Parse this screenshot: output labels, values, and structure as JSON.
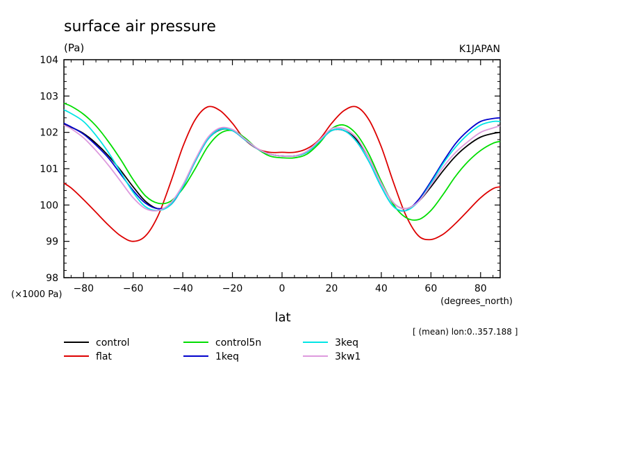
{
  "chart_data": {
    "type": "line",
    "title": "surface air pressure",
    "units_label": "(Pa)",
    "model_label": "K1JAPAN",
    "xlabel": "lat",
    "x_units_label": "(degrees_north)",
    "y_scale_label": "(×1000 Pa)",
    "footnote": "[ (mean) lon:0..357.188 ]",
    "xlim": [
      -87.9,
      87.9
    ],
    "ylim": [
      98,
      104
    ],
    "x_ticks": [
      -80,
      -60,
      -40,
      -20,
      0,
      20,
      40,
      60,
      80
    ],
    "y_ticks": [
      98,
      99,
      100,
      101,
      102,
      103,
      104
    ],
    "x": [
      -87.9,
      -85,
      -80,
      -75,
      -70,
      -65,
      -60,
      -55,
      -50,
      -45,
      -40,
      -35,
      -30,
      -25,
      -20,
      -15,
      -10,
      -5,
      0,
      5,
      10,
      15,
      20,
      25,
      30,
      35,
      40,
      45,
      50,
      55,
      60,
      65,
      70,
      75,
      80,
      85,
      87.9
    ],
    "series": [
      {
        "name": "control",
        "color": "#000000",
        "values": [
          102.22,
          102.14,
          101.97,
          101.7,
          101.36,
          100.95,
          100.5,
          100.1,
          99.9,
          100.0,
          100.5,
          101.2,
          101.8,
          102.07,
          102.05,
          101.8,
          101.55,
          101.4,
          101.35,
          101.35,
          101.45,
          101.75,
          102.05,
          102.05,
          101.8,
          101.3,
          100.6,
          100.05,
          99.9,
          100.1,
          100.5,
          100.95,
          101.35,
          101.65,
          101.87,
          101.97,
          102.0
        ]
      },
      {
        "name": "flat",
        "color": "#dd0000",
        "values": [
          100.6,
          100.47,
          100.15,
          99.8,
          99.45,
          99.15,
          99.0,
          99.15,
          99.7,
          100.6,
          101.6,
          102.35,
          102.7,
          102.6,
          102.25,
          101.8,
          101.55,
          101.45,
          101.45,
          101.45,
          101.55,
          101.8,
          102.25,
          102.6,
          102.7,
          102.35,
          101.6,
          100.6,
          99.7,
          99.15,
          99.05,
          99.2,
          99.5,
          99.85,
          100.2,
          100.45,
          100.5
        ]
      },
      {
        "name": "control5n",
        "color": "#00dd00",
        "values": [
          102.8,
          102.72,
          102.5,
          102.18,
          101.75,
          101.25,
          100.7,
          100.25,
          100.05,
          100.1,
          100.45,
          101.0,
          101.6,
          101.97,
          102.05,
          101.85,
          101.55,
          101.35,
          101.3,
          101.3,
          101.4,
          101.7,
          102.1,
          102.2,
          101.95,
          101.4,
          100.65,
          100.0,
          99.65,
          99.6,
          99.85,
          100.3,
          100.8,
          101.2,
          101.5,
          101.7,
          101.75
        ]
      },
      {
        "name": "1keq",
        "color": "#0000cc",
        "values": [
          102.25,
          102.15,
          101.95,
          101.65,
          101.3,
          100.85,
          100.4,
          100.05,
          99.9,
          100.0,
          100.5,
          101.2,
          101.8,
          102.1,
          102.05,
          101.8,
          101.55,
          101.4,
          101.35,
          101.35,
          101.45,
          101.75,
          102.05,
          102.05,
          101.75,
          101.2,
          100.5,
          99.95,
          99.85,
          100.15,
          100.65,
          101.2,
          101.7,
          102.05,
          102.3,
          102.38,
          102.4
        ]
      },
      {
        "name": "3keq",
        "color": "#00e5e5",
        "values": [
          102.62,
          102.52,
          102.3,
          101.92,
          101.45,
          100.9,
          100.35,
          99.95,
          99.85,
          100.0,
          100.5,
          101.2,
          101.8,
          102.08,
          102.05,
          101.8,
          101.55,
          101.4,
          101.35,
          101.35,
          101.45,
          101.75,
          102.05,
          102.05,
          101.75,
          101.2,
          100.5,
          99.95,
          99.85,
          100.1,
          100.6,
          101.15,
          101.6,
          101.95,
          102.2,
          102.3,
          102.3
        ]
      },
      {
        "name": "3kw1",
        "color": "#dd99dd",
        "values": [
          102.2,
          102.1,
          101.85,
          101.5,
          101.1,
          100.65,
          100.2,
          99.9,
          99.85,
          100.05,
          100.55,
          101.25,
          101.85,
          102.12,
          102.08,
          101.82,
          101.56,
          101.4,
          101.35,
          101.35,
          101.48,
          101.78,
          102.1,
          102.1,
          101.85,
          101.3,
          100.6,
          100.05,
          99.9,
          100.1,
          100.55,
          101.05,
          101.45,
          101.75,
          102.0,
          102.12,
          102.18
        ]
      }
    ]
  }
}
